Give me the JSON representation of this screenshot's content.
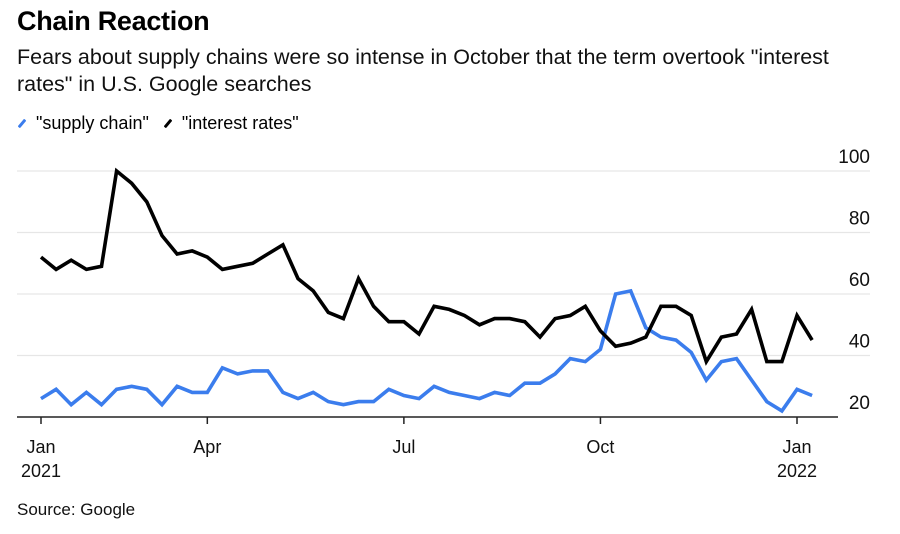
{
  "header": {
    "title": "Chain Reaction",
    "subtitle": "Fears about supply chains were so intense in October that the term overtook \"interest rates\" in U.S. Google searches"
  },
  "legend": [
    {
      "label": "\"supply chain\"",
      "color": "#3b7ded"
    },
    {
      "label": "\"interest rates\"",
      "color": "#000000"
    }
  ],
  "footer": {
    "source": "Source: Google"
  },
  "chart_data": {
    "type": "line",
    "title": "Chain Reaction",
    "subtitle": "Fears about supply chains were so intense in October that the term overtook \"interest rates\" in U.S. Google searches",
    "xlabel": "",
    "ylabel": "",
    "x_range": [
      "2021-01",
      "2022-01"
    ],
    "x_ticks": [
      {
        "label": "Jan",
        "sublabel": "2021",
        "week": 0
      },
      {
        "label": "Apr",
        "sublabel": "",
        "week": 11
      },
      {
        "label": "Jul",
        "sublabel": "",
        "week": 24
      },
      {
        "label": "Oct",
        "sublabel": "",
        "week": 37
      },
      {
        "label": "Jan",
        "sublabel": "2022",
        "week": 50
      }
    ],
    "y_ticks": [
      20,
      40,
      60,
      80,
      100
    ],
    "ylim": [
      20,
      100
    ],
    "y_axis_side": "right",
    "grid": true,
    "legend_position": "top-left",
    "x_unit": "week index (weekly, starting first week of Jan 2021)",
    "series": [
      {
        "name": "\"supply chain\"",
        "color": "#3b7ded",
        "values": [
          26,
          29,
          24,
          28,
          24,
          29,
          30,
          29,
          24,
          30,
          28,
          28,
          36,
          34,
          35,
          35,
          28,
          26,
          28,
          25,
          24,
          25,
          25,
          29,
          27,
          26,
          30,
          28,
          27,
          26,
          28,
          27,
          31,
          31,
          34,
          39,
          38,
          42,
          60,
          61,
          49,
          46,
          45,
          41,
          32,
          38,
          39,
          32,
          25,
          22,
          29,
          27
        ]
      },
      {
        "name": "\"interest rates\"",
        "color": "#000000",
        "values": [
          72,
          68,
          71,
          68,
          69,
          100,
          96,
          90,
          79,
          73,
          74,
          72,
          68,
          69,
          70,
          73,
          76,
          65,
          61,
          54,
          52,
          65,
          56,
          51,
          51,
          47,
          56,
          55,
          53,
          50,
          52,
          52,
          51,
          46,
          52,
          53,
          56,
          48,
          43,
          44,
          46,
          56,
          56,
          53,
          38,
          46,
          47,
          55,
          38,
          38,
          53,
          45
        ]
      }
    ]
  }
}
